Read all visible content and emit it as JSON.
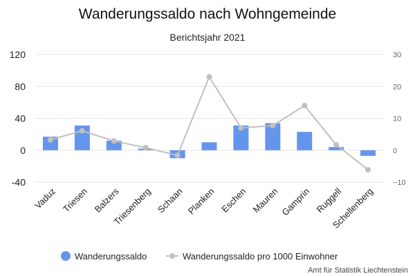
{
  "chart_data": {
    "type": "bar",
    "title": "Wanderungssaldo nach Wohngemeinde",
    "subtitle": "Berichtsjahr 2021",
    "categories": [
      "Vaduz",
      "Triesen",
      "Balzers",
      "Triesenberg",
      "Schaan",
      "Planken",
      "Eschen",
      "Mauren",
      "Gamprin",
      "Ruggell",
      "Schellenberg"
    ],
    "series": [
      {
        "name": "Wanderungssaldo",
        "type": "bar",
        "axis": "left",
        "color": "#6495ed",
        "values": [
          17,
          31,
          12,
          2,
          -10,
          10,
          31,
          34,
          23,
          4,
          -7
        ]
      },
      {
        "name": "Wanderungssaldo pro 1000 Einwohner",
        "type": "line",
        "axis": "right",
        "color": "#c0c0c0",
        "values": [
          3.3,
          6.1,
          2.9,
          0.8,
          -1.6,
          23.0,
          7.0,
          7.7,
          14.0,
          1.7,
          -6.1
        ]
      }
    ],
    "ylim_left": [
      -40,
      120
    ],
    "yticks_left": [
      "120",
      "80",
      "40",
      "0",
      "-40"
    ],
    "yticks_left_values": [
      120,
      80,
      40,
      0,
      -40
    ],
    "ylim_right": [
      -10,
      30
    ],
    "yticks_right": [
      "30",
      "20",
      "10",
      "0",
      "−10"
    ],
    "yticks_right_values": [
      30,
      20,
      10,
      0,
      -10
    ],
    "grid": true,
    "legend_position": "bottom-center",
    "source": "Amt für Statistik Liechtenstein"
  }
}
